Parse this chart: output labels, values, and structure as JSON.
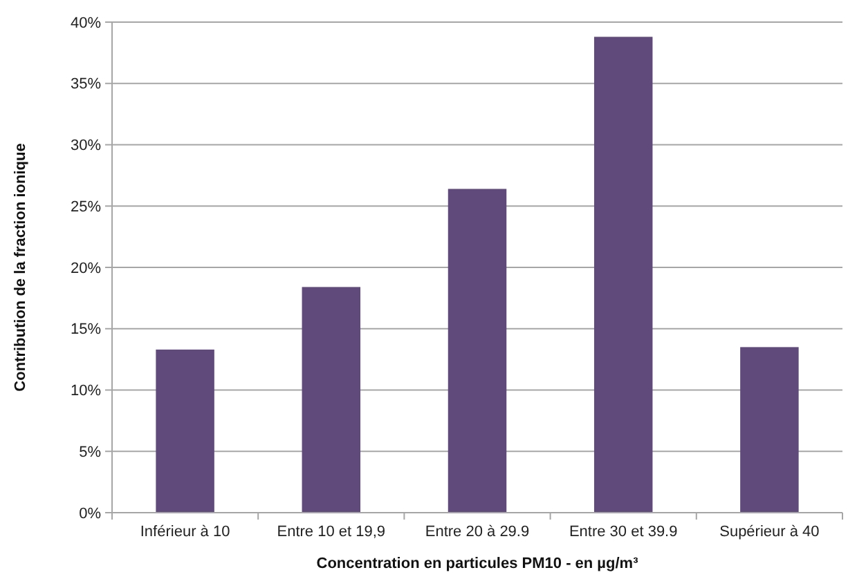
{
  "chart_data": {
    "type": "bar",
    "xlabel": "Concentration en particules PM10 - en µg/m³",
    "ylabel": "Contribution de la fraction ionique",
    "categories": [
      "Inférieur à 10",
      "Entre 10 et 19,9",
      "Entre 20 à 29.9",
      "Entre 30 et 39.9",
      "Supérieur à 40"
    ],
    "values": [
      13.3,
      18.4,
      26.4,
      38.8,
      13.5
    ],
    "color": "#604a7b",
    "ylim": [
      0,
      40
    ],
    "yticks": [
      {
        "value": 0,
        "label": "0%"
      },
      {
        "value": 5,
        "label": "5%"
      },
      {
        "value": 10,
        "label": "10%"
      },
      {
        "value": 15,
        "label": "15%"
      },
      {
        "value": 20,
        "label": "20%"
      },
      {
        "value": 25,
        "label": "25%"
      },
      {
        "value": 30,
        "label": "30%"
      },
      {
        "value": 35,
        "label": "35%"
      },
      {
        "value": 40,
        "label": "40%"
      }
    ],
    "grid": "y"
  }
}
